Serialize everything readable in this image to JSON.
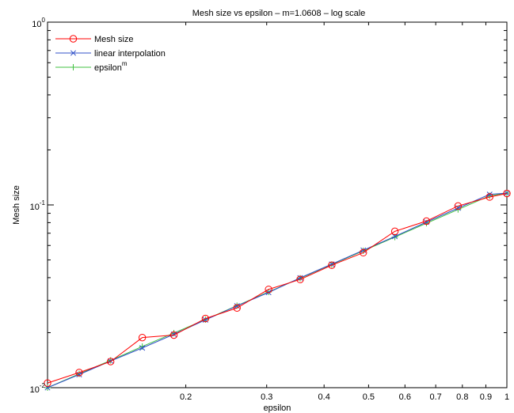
{
  "chart_data": {
    "type": "line",
    "title": "Mesh size vs epsilon – m=1.0608 – log scale",
    "xlabel": "epsilon",
    "ylabel": "Mesh size",
    "xscale": "log",
    "yscale": "log",
    "xlim": [
      0.1,
      1.0
    ],
    "ylim": [
      0.01,
      1.0
    ],
    "grid": false,
    "legend_position": "top-left",
    "x_tick_labels": [
      "0.2",
      "0.3",
      "0.4",
      "0.5",
      "0.6",
      "0.7",
      "0.8",
      "0.9",
      "1"
    ],
    "y_tick_labels": [
      {
        "base": "10",
        "exp": "-2"
      },
      {
        "base": "10",
        "exp": "-1"
      },
      {
        "base": "10",
        "exp": "0"
      }
    ],
    "series": [
      {
        "name": "Mesh size",
        "color": "#ff0000",
        "marker": "circle",
        "x": [
          0.1,
          0.1172,
          0.1372,
          0.1608,
          0.1884,
          0.2207,
          0.2585,
          0.3029,
          0.3548,
          0.4157,
          0.4869,
          0.5704,
          0.6682,
          0.7829,
          0.9172,
          1.0
        ],
        "y": [
          0.0106,
          0.0121,
          0.0139,
          0.0188,
          0.0194,
          0.0239,
          0.0273,
          0.0345,
          0.0391,
          0.0468,
          0.0548,
          0.0717,
          0.0816,
          0.0987,
          0.1105,
          0.1155
        ]
      },
      {
        "name": "linear interpolation",
        "color": "#3050c8",
        "marker": "x",
        "x": [
          0.1,
          0.1172,
          0.1372,
          0.1608,
          0.1884,
          0.2207,
          0.2585,
          0.3029,
          0.3548,
          0.4157,
          0.4869,
          0.5704,
          0.6682,
          0.7829,
          0.9172,
          1.0
        ],
        "y": [
          0.01,
          0.0118,
          0.014,
          0.0165,
          0.0196,
          0.0235,
          0.028,
          0.0332,
          0.0399,
          0.0474,
          0.0565,
          0.0672,
          0.0806,
          0.0961,
          0.1142,
          0.116
        ]
      },
      {
        "name": "epsilon",
        "name_superscript": "m",
        "color": "#40c040",
        "marker": "plus",
        "x": [
          0.1,
          0.1172,
          0.1372,
          0.1608,
          0.1884,
          0.2207,
          0.2585,
          0.3029,
          0.3548,
          0.4157,
          0.4869,
          0.5704,
          0.6682,
          0.7829,
          0.9172,
          1.0
        ],
        "y": [
          0.01,
          0.0119,
          0.0141,
          0.0168,
          0.0199,
          0.0236,
          0.0281,
          0.0334,
          0.0397,
          0.0472,
          0.0561,
          0.0667,
          0.0794,
          0.0944,
          0.1122,
          0.116
        ]
      }
    ]
  }
}
